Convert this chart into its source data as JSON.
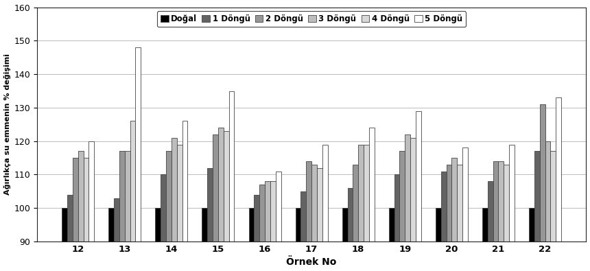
{
  "categories": [
    12,
    13,
    14,
    15,
    16,
    17,
    18,
    19,
    20,
    21,
    22
  ],
  "series": {
    "Doğal": [
      100,
      100,
      100,
      100,
      100,
      100,
      100,
      100,
      100,
      100,
      100
    ],
    "1 Döngü": [
      104,
      103,
      110,
      112,
      104,
      105,
      106,
      110,
      111,
      108,
      117
    ],
    "2 Döngü": [
      115,
      117,
      117,
      122,
      107,
      114,
      113,
      117,
      113,
      114,
      131
    ],
    "3 Döngü": [
      117,
      117,
      121,
      124,
      108,
      113,
      119,
      122,
      115,
      114,
      120
    ],
    "4 Döngü": [
      115,
      126,
      119,
      123,
      108,
      112,
      119,
      121,
      113,
      113,
      117
    ],
    "5 Döngü": [
      120,
      148,
      126,
      135,
      111,
      119,
      124,
      129,
      118,
      119,
      133
    ]
  },
  "series_order": [
    "Doğal",
    "1 Döngü",
    "2 Döngü",
    "3 Döngü",
    "4 Döngü",
    "5 Döngü"
  ],
  "bar_colors": [
    "#000000",
    "#636363",
    "#969696",
    "#bdbdbd",
    "#d9d9d9",
    "#ffffff"
  ],
  "ylabel": "Ağırlıkça su emmenin % değişimi",
  "xlabel": "Örnek No",
  "ylim": [
    90,
    160
  ],
  "yticks": [
    90,
    100,
    110,
    120,
    130,
    140,
    150,
    160
  ],
  "background_color": "#ffffff",
  "figwidth": 8.6,
  "figheight": 3.95,
  "dpi": 100
}
